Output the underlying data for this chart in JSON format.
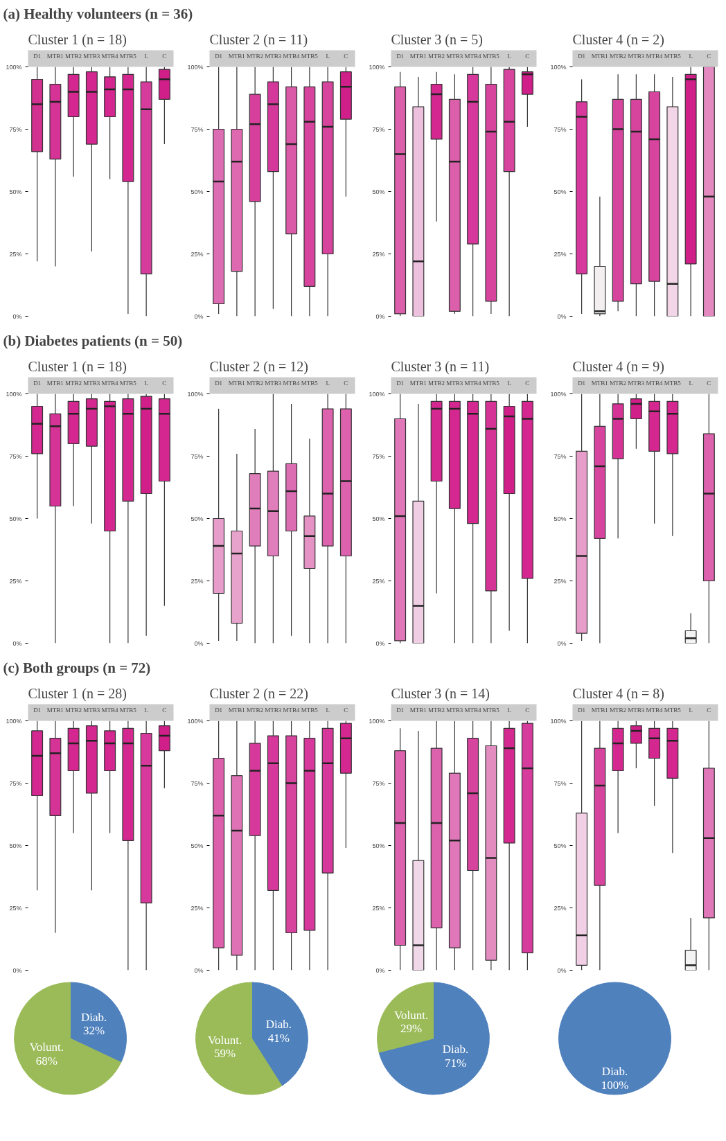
{
  "chart_data": [
    {
      "type": "other",
      "title": "(a) Healthy volunteers (n = 36)"
    },
    {
      "type": "box",
      "title": "Cluster 1 (n = 18)",
      "categories": [
        "D1",
        "MTB1",
        "MTB2",
        "MTB3",
        "MTB4",
        "MTB5",
        "L",
        "C"
      ],
      "colors": [
        "#d2318f",
        "#d53395",
        "#d42890",
        "#d42890",
        "#d42890",
        "#d42890",
        "#d63c9c",
        "#d11f8a"
      ],
      "boxes": [
        {
          "low": 22,
          "q1": 66,
          "median": 85,
          "q3": 95,
          "high": 100
        },
        {
          "low": 20,
          "q1": 63,
          "median": 86,
          "q3": 93,
          "high": 100
        },
        {
          "low": 56,
          "q1": 80,
          "median": 90,
          "q3": 97,
          "high": 100
        },
        {
          "low": 26,
          "q1": 69,
          "median": 90,
          "q3": 98,
          "high": 100
        },
        {
          "low": 55,
          "q1": 80,
          "median": 91,
          "q3": 96,
          "high": 100
        },
        {
          "low": 1,
          "q1": 54,
          "median": 91,
          "q3": 97,
          "high": 100
        },
        {
          "low": 0,
          "q1": 17,
          "median": 83,
          "q3": 94,
          "high": 100
        },
        {
          "low": 69,
          "q1": 87,
          "median": 95,
          "q3": 99,
          "high": 100
        }
      ],
      "ylim": [
        0,
        100
      ],
      "yticks": [
        {
          "value": 0,
          "label": "0%"
        },
        {
          "value": 25,
          "label": "25%"
        },
        {
          "value": 50,
          "label": "50%"
        },
        {
          "value": 75,
          "label": "75%"
        },
        {
          "value": 100,
          "label": "100%"
        }
      ]
    },
    {
      "type": "box",
      "title": "Cluster 2 (n = 11)",
      "categories": [
        "D1",
        "MTB1",
        "MTB2",
        "MTB3",
        "MTB4",
        "MTB5",
        "L",
        "C"
      ],
      "colors": [
        "#dc6db3",
        "#de69b0",
        "#d6409c",
        "#d4389a",
        "#db5aa8",
        "#d6449e",
        "#d6449e",
        "#d11f8a"
      ],
      "boxes": [
        {
          "low": 1,
          "q1": 5,
          "median": 54,
          "q3": 75,
          "high": 100
        },
        {
          "low": 0,
          "q1": 18,
          "median": 62,
          "q3": 75,
          "high": 100
        },
        {
          "low": 0,
          "q1": 46,
          "median": 77,
          "q3": 89,
          "high": 100
        },
        {
          "low": 3,
          "q1": 58,
          "median": 85,
          "q3": 94,
          "high": 100
        },
        {
          "low": 0,
          "q1": 33,
          "median": 69,
          "q3": 92,
          "high": 100
        },
        {
          "low": 0,
          "q1": 12,
          "median": 78,
          "q3": 92,
          "high": 100
        },
        {
          "low": 0,
          "q1": 25,
          "median": 76,
          "q3": 94,
          "high": 100
        },
        {
          "low": 48,
          "q1": 79,
          "median": 92,
          "q3": 98,
          "high": 100
        }
      ],
      "ylim": [
        0,
        100
      ],
      "yticks": [
        {
          "value": 0,
          "label": "0%"
        },
        {
          "value": 25,
          "label": "25%"
        },
        {
          "value": 50,
          "label": "50%"
        },
        {
          "value": 75,
          "label": "75%"
        },
        {
          "value": 100,
          "label": "100%"
        }
      ]
    },
    {
      "type": "box",
      "title": "Cluster 3 (n = 5)",
      "categories": [
        "D1",
        "MTB1",
        "MTB2",
        "MTB3",
        "MTB4",
        "MTB5",
        "L",
        "C"
      ],
      "colors": [
        "#dc5fab",
        "#edc1dd",
        "#d42890",
        "#dc5fab",
        "#d6399b",
        "#d6449e",
        "#d6449e",
        "#d11f8a"
      ],
      "boxes": [
        {
          "low": 0,
          "q1": 1,
          "median": 65,
          "q3": 92,
          "high": 98
        },
        {
          "low": 0,
          "q1": 0,
          "median": 22,
          "q3": 84,
          "high": 96
        },
        {
          "low": 38,
          "q1": 71,
          "median": 89,
          "q3": 93,
          "high": 98
        },
        {
          "low": 1,
          "q1": 2,
          "median": 62,
          "q3": 87,
          "high": 97
        },
        {
          "low": 0,
          "q1": 29,
          "median": 86,
          "q3": 97,
          "high": 100
        },
        {
          "low": 1,
          "q1": 6,
          "median": 74,
          "q3": 93,
          "high": 100
        },
        {
          "low": 0,
          "q1": 58,
          "median": 78,
          "q3": 99,
          "high": 100
        },
        {
          "low": 76,
          "q1": 89,
          "median": 97,
          "q3": 98,
          "high": 100
        }
      ],
      "ylim": [
        0,
        100
      ],
      "yticks": [
        {
          "value": 0,
          "label": "0%"
        },
        {
          "value": 25,
          "label": "25%"
        },
        {
          "value": 50,
          "label": "50%"
        },
        {
          "value": 75,
          "label": "75%"
        },
        {
          "value": 100,
          "label": "100%"
        }
      ]
    },
    {
      "type": "box",
      "title": "Cluster 4 (n = 2)",
      "categories": [
        "D1",
        "MTB1",
        "MTB2",
        "MTB3",
        "MTB4",
        "MTB5",
        "L",
        "C"
      ],
      "colors": [
        "#d6399b",
        "#f3eff1",
        "#d6449e",
        "#d6449e",
        "#d6449e",
        "#f2d6e8",
        "#d11f8a",
        "#e48ac0"
      ],
      "boxes": [
        {
          "low": 1,
          "q1": 17,
          "median": 80,
          "q3": 86,
          "high": 95
        },
        {
          "low": 0,
          "q1": 1,
          "median": 2,
          "q3": 20,
          "high": 48
        },
        {
          "low": 2,
          "q1": 6,
          "median": 75,
          "q3": 87,
          "high": 97
        },
        {
          "low": 0,
          "q1": 13,
          "median": 74,
          "q3": 87,
          "high": 97
        },
        {
          "low": 0,
          "q1": 14,
          "median": 71,
          "q3": 90,
          "high": 97
        },
        {
          "low": 0,
          "q1": 0,
          "median": 13,
          "q3": 84,
          "high": 96
        },
        {
          "low": 0,
          "q1": 21,
          "median": 95,
          "q3": 97,
          "high": 100
        },
        {
          "low": 0,
          "q1": 0,
          "median": 48,
          "q3": 100,
          "high": 100
        }
      ],
      "ylim": [
        0,
        100
      ],
      "yticks": [
        {
          "value": 0,
          "label": "0%"
        },
        {
          "value": 25,
          "label": "25%"
        },
        {
          "value": 50,
          "label": "50%"
        },
        {
          "value": 75,
          "label": "75%"
        },
        {
          "value": 100,
          "label": "100%"
        }
      ]
    },
    {
      "type": "other",
      "title": "(b) Diabetes patients (n = 50)"
    },
    {
      "type": "box",
      "title": "Cluster 1 (n = 18)",
      "categories": [
        "D1",
        "MTB1",
        "MTB2",
        "MTB3",
        "MTB4",
        "MTB5",
        "L",
        "C"
      ],
      "colors": [
        "#d42890",
        "#d53395",
        "#d42890",
        "#d42890",
        "#d42890",
        "#d42890",
        "#d11f8a",
        "#d42890"
      ],
      "boxes": [
        {
          "low": 50,
          "q1": 76,
          "median": 88,
          "q3": 95,
          "high": 100
        },
        {
          "low": 0,
          "q1": 55,
          "median": 87,
          "q3": 92,
          "high": 100
        },
        {
          "low": 55,
          "q1": 80,
          "median": 92,
          "q3": 97,
          "high": 100
        },
        {
          "low": 48,
          "q1": 79,
          "median": 94,
          "q3": 98,
          "high": 100
        },
        {
          "low": 0,
          "q1": 45,
          "median": 95,
          "q3": 97,
          "high": 100
        },
        {
          "low": 0,
          "q1": 57,
          "median": 92,
          "q3": 98,
          "high": 100
        },
        {
          "low": 3,
          "q1": 60,
          "median": 94,
          "q3": 99,
          "high": 100
        },
        {
          "low": 15,
          "q1": 65,
          "median": 92,
          "q3": 98,
          "high": 100
        }
      ],
      "ylim": [
        0,
        100
      ],
      "yticks": [
        {
          "value": 0,
          "label": "0%"
        },
        {
          "value": 25,
          "label": "25%"
        },
        {
          "value": 50,
          "label": "50%"
        },
        {
          "value": 75,
          "label": "75%"
        },
        {
          "value": 100,
          "label": "100%"
        }
      ]
    },
    {
      "type": "box",
      "title": "Cluster 2 (n = 12)",
      "categories": [
        "D1",
        "MTB1",
        "MTB2",
        "MTB3",
        "MTB4",
        "MTB5",
        "L",
        "C"
      ],
      "colors": [
        "#e79dca",
        "#e8a3cd",
        "#e07dbb",
        "#e07dbb",
        "#dc6db3",
        "#e592c5",
        "#dc62ad",
        "#dc62ad"
      ],
      "boxes": [
        {
          "low": 1,
          "q1": 20,
          "median": 39,
          "q3": 50,
          "high": 94
        },
        {
          "low": 1,
          "q1": 8,
          "median": 36,
          "q3": 45,
          "high": 76
        },
        {
          "low": 0,
          "q1": 39,
          "median": 54,
          "q3": 68,
          "high": 86
        },
        {
          "low": 0,
          "q1": 35,
          "median": 53,
          "q3": 69,
          "high": 100
        },
        {
          "low": 3,
          "q1": 45,
          "median": 61,
          "q3": 72,
          "high": 96
        },
        {
          "low": 0,
          "q1": 30,
          "median": 43,
          "q3": 51,
          "high": 82
        },
        {
          "low": 0,
          "q1": 39,
          "median": 60,
          "q3": 94,
          "high": 100
        },
        {
          "low": 0,
          "q1": 35,
          "median": 65,
          "q3": 94,
          "high": 100
        }
      ],
      "ylim": [
        0,
        100
      ],
      "yticks": [
        {
          "value": 0,
          "label": "0%"
        },
        {
          "value": 25,
          "label": "25%"
        },
        {
          "value": 50,
          "label": "50%"
        },
        {
          "value": 75,
          "label": "75%"
        },
        {
          "value": 100,
          "label": "100%"
        }
      ]
    },
    {
      "type": "box",
      "title": "Cluster 3 (n = 11)",
      "categories": [
        "D1",
        "MTB1",
        "MTB2",
        "MTB3",
        "MTB4",
        "MTB5",
        "L",
        "C"
      ],
      "colors": [
        "#df77b8",
        "#efcde3",
        "#d42890",
        "#d42890",
        "#d42890",
        "#d53395",
        "#d11f8a",
        "#d42890"
      ],
      "boxes": [
        {
          "low": 0,
          "q1": 1,
          "median": 51,
          "q3": 90,
          "high": 100
        },
        {
          "low": 0,
          "q1": 0,
          "median": 15,
          "q3": 57,
          "high": 96
        },
        {
          "low": 20,
          "q1": 65,
          "median": 94,
          "q3": 97,
          "high": 100
        },
        {
          "low": 0,
          "q1": 54,
          "median": 94,
          "q3": 97,
          "high": 100
        },
        {
          "low": 0,
          "q1": 48,
          "median": 92,
          "q3": 97,
          "high": 100
        },
        {
          "low": 0,
          "q1": 21,
          "median": 86,
          "q3": 97,
          "high": 100
        },
        {
          "low": 5,
          "q1": 60,
          "median": 91,
          "q3": 95,
          "high": 100
        },
        {
          "low": 0,
          "q1": 26,
          "median": 90,
          "q3": 97,
          "high": 100
        }
      ],
      "ylim": [
        0,
        100
      ],
      "yticks": [
        {
          "value": 0,
          "label": "0%"
        },
        {
          "value": 25,
          "label": "25%"
        },
        {
          "value": 50,
          "label": "50%"
        },
        {
          "value": 75,
          "label": "75%"
        },
        {
          "value": 100,
          "label": "100%"
        }
      ]
    },
    {
      "type": "box",
      "title": "Cluster 4 (n = 9)",
      "categories": [
        "D1",
        "MTB1",
        "MTB2",
        "MTB3",
        "MTB4",
        "MTB5",
        "L",
        "C"
      ],
      "colors": [
        "#e79dca",
        "#d6449e",
        "#d53395",
        "#d11f8a",
        "#d42890",
        "#d42890",
        "#f3f3f3",
        "#dc62ad"
      ],
      "boxes": [
        {
          "low": 1,
          "q1": 4,
          "median": 35,
          "q3": 77,
          "high": 100
        },
        {
          "low": 0,
          "q1": 42,
          "median": 71,
          "q3": 87,
          "high": 100
        },
        {
          "low": 42,
          "q1": 74,
          "median": 90,
          "q3": 96,
          "high": 100
        },
        {
          "low": 78,
          "q1": 90,
          "median": 96,
          "q3": 98,
          "high": 100
        },
        {
          "low": 48,
          "q1": 77,
          "median": 93,
          "q3": 97,
          "high": 100
        },
        {
          "low": 43,
          "q1": 76,
          "median": 92,
          "q3": 97,
          "high": 100
        },
        {
          "low": 0,
          "q1": 0,
          "median": 2,
          "q3": 5,
          "high": 12
        },
        {
          "low": 0,
          "q1": 25,
          "median": 60,
          "q3": 84,
          "high": 100
        }
      ],
      "ylim": [
        0,
        100
      ],
      "yticks": [
        {
          "value": 0,
          "label": "0%"
        },
        {
          "value": 25,
          "label": "25%"
        },
        {
          "value": 50,
          "label": "50%"
        },
        {
          "value": 75,
          "label": "75%"
        },
        {
          "value": 100,
          "label": "100%"
        }
      ]
    },
    {
      "type": "other",
      "title": "(c) Both groups (n = 72)"
    },
    {
      "type": "box",
      "title": "Cluster 1 (n = 28)",
      "categories": [
        "D1",
        "MTB1",
        "MTB2",
        "MTB3",
        "MTB4",
        "MTB5",
        "L",
        "C"
      ],
      "colors": [
        "#d42890",
        "#d53395",
        "#d42890",
        "#d42890",
        "#d42890",
        "#d42890",
        "#d6399b",
        "#d11f8a"
      ],
      "boxes": [
        {
          "low": 32,
          "q1": 70,
          "median": 86,
          "q3": 96,
          "high": 100
        },
        {
          "low": 15,
          "q1": 62,
          "median": 87,
          "q3": 93,
          "high": 100
        },
        {
          "low": 55,
          "q1": 80,
          "median": 91,
          "q3": 97,
          "high": 100
        },
        {
          "low": 32,
          "q1": 71,
          "median": 92,
          "q3": 98,
          "high": 100
        },
        {
          "low": 55,
          "q1": 80,
          "median": 91,
          "q3": 96,
          "high": 100
        },
        {
          "low": 0,
          "q1": 52,
          "median": 91,
          "q3": 97,
          "high": 100
        },
        {
          "low": 0,
          "q1": 27,
          "median": 82,
          "q3": 95,
          "high": 100
        },
        {
          "low": 73,
          "q1": 88,
          "median": 94,
          "q3": 98,
          "high": 100
        }
      ],
      "ylim": [
        0,
        100
      ],
      "yticks": [
        {
          "value": 0,
          "label": "0%"
        },
        {
          "value": 25,
          "label": "25%"
        },
        {
          "value": 50,
          "label": "50%"
        },
        {
          "value": 75,
          "label": "75%"
        },
        {
          "value": 100,
          "label": "100%"
        }
      ]
    },
    {
      "type": "box",
      "title": "Cluster 2 (n = 22)",
      "categories": [
        "D1",
        "MTB1",
        "MTB2",
        "MTB3",
        "MTB4",
        "MTB5",
        "L",
        "C"
      ],
      "colors": [
        "#dc5fab",
        "#df72b5",
        "#d6399b",
        "#d6399b",
        "#d6449e",
        "#d6399b",
        "#d6399b",
        "#d42890"
      ],
      "boxes": [
        {
          "low": 0,
          "q1": 9,
          "median": 62,
          "q3": 85,
          "high": 100
        },
        {
          "low": 0,
          "q1": 6,
          "median": 56,
          "q3": 78,
          "high": 100
        },
        {
          "low": 0,
          "q1": 54,
          "median": 80,
          "q3": 91,
          "high": 100
        },
        {
          "low": 0,
          "q1": 32,
          "median": 83,
          "q3": 94,
          "high": 100
        },
        {
          "low": 0,
          "q1": 15,
          "median": 75,
          "q3": 94,
          "high": 100
        },
        {
          "low": 0,
          "q1": 16,
          "median": 80,
          "q3": 93,
          "high": 100
        },
        {
          "low": 0,
          "q1": 39,
          "median": 83,
          "q3": 97,
          "high": 100
        },
        {
          "low": 49,
          "q1": 79,
          "median": 93,
          "q3": 99,
          "high": 100
        }
      ],
      "ylim": [
        0,
        100
      ],
      "yticks": [
        {
          "value": 0,
          "label": "0%"
        },
        {
          "value": 25,
          "label": "25%"
        },
        {
          "value": 50,
          "label": "50%"
        },
        {
          "value": 75,
          "label": "75%"
        },
        {
          "value": 100,
          "label": "100%"
        }
      ]
    },
    {
      "type": "box",
      "title": "Cluster 3 (n = 14)",
      "categories": [
        "D1",
        "MTB1",
        "MTB2",
        "MTB3",
        "MTB4",
        "MTB5",
        "L",
        "C"
      ],
      "colors": [
        "#dc62ad",
        "#f1d8e9",
        "#dc62ad",
        "#df77b8",
        "#d6449e",
        "#e38cc0",
        "#d42890",
        "#d63c9c"
      ],
      "boxes": [
        {
          "low": 0,
          "q1": 10,
          "median": 59,
          "q3": 88,
          "high": 97
        },
        {
          "low": 0,
          "q1": 0,
          "median": 10,
          "q3": 44,
          "high": 96
        },
        {
          "low": 0,
          "q1": 17,
          "median": 59,
          "q3": 89,
          "high": 100
        },
        {
          "low": 0,
          "q1": 9,
          "median": 52,
          "q3": 79,
          "high": 100
        },
        {
          "low": 0,
          "q1": 40,
          "median": 71,
          "q3": 93,
          "high": 100
        },
        {
          "low": 0,
          "q1": 4,
          "median": 45,
          "q3": 90,
          "high": 100
        },
        {
          "low": 0,
          "q1": 51,
          "median": 89,
          "q3": 97,
          "high": 100
        },
        {
          "low": 0,
          "q1": 7,
          "median": 81,
          "q3": 99,
          "high": 100
        }
      ],
      "ylim": [
        0,
        100
      ],
      "yticks": [
        {
          "value": 0,
          "label": "0%"
        },
        {
          "value": 25,
          "label": "25%"
        },
        {
          "value": 50,
          "label": "50%"
        },
        {
          "value": 75,
          "label": "75%"
        },
        {
          "value": 100,
          "label": "100%"
        }
      ]
    },
    {
      "type": "box",
      "title": "Cluster 4 (n = 8)",
      "categories": [
        "D1",
        "MTB1",
        "MTB2",
        "MTB3",
        "MTB4",
        "MTB5",
        "L",
        "C"
      ],
      "colors": [
        "#f1cfe4",
        "#d6449e",
        "#d42890",
        "#d11f8a",
        "#d42890",
        "#d42890",
        "#f3f3f3",
        "#df77b8"
      ],
      "boxes": [
        {
          "low": 0,
          "q1": 2,
          "median": 14,
          "q3": 63,
          "high": 100
        },
        {
          "low": 0,
          "q1": 34,
          "median": 74,
          "q3": 89,
          "high": 100
        },
        {
          "low": 55,
          "q1": 80,
          "median": 91,
          "q3": 97,
          "high": 100
        },
        {
          "low": 81,
          "q1": 91,
          "median": 96,
          "q3": 98,
          "high": 100
        },
        {
          "low": 66,
          "q1": 85,
          "median": 93,
          "q3": 97,
          "high": 100
        },
        {
          "low": 47,
          "q1": 77,
          "median": 92,
          "q3": 97,
          "high": 100
        },
        {
          "low": 0,
          "q1": 0,
          "median": 2,
          "q3": 8,
          "high": 21
        },
        {
          "low": 0,
          "q1": 21,
          "median": 53,
          "q3": 81,
          "high": 100
        }
      ],
      "ylim": [
        0,
        100
      ],
      "yticks": [
        {
          "value": 0,
          "label": "0%"
        },
        {
          "value": 25,
          "label": "25%"
        },
        {
          "value": 50,
          "label": "50%"
        },
        {
          "value": 75,
          "label": "75%"
        },
        {
          "value": 100,
          "label": "100%"
        }
      ]
    },
    {
      "type": "pie",
      "categories": [
        "Diab.",
        "Volunt."
      ],
      "values": [
        32,
        68
      ],
      "value_labels": [
        "32%",
        "68%"
      ],
      "colors": [
        "#4f81bd",
        "#9bbb59"
      ]
    },
    {
      "type": "pie",
      "categories": [
        "Diab.",
        "Volunt."
      ],
      "values": [
        41,
        59
      ],
      "value_labels": [
        "41%",
        "59%"
      ],
      "colors": [
        "#4f81bd",
        "#9bbb59"
      ]
    },
    {
      "type": "pie",
      "categories": [
        "Diab.",
        "Volunt."
      ],
      "values": [
        71,
        29
      ],
      "value_labels": [
        "71%",
        "29%"
      ],
      "colors": [
        "#4f81bd",
        "#9bbb59"
      ]
    },
    {
      "type": "pie",
      "categories": [
        "Diab."
      ],
      "values": [
        100
      ],
      "value_labels": [
        "100%"
      ],
      "colors": [
        "#4f81bd"
      ]
    }
  ]
}
